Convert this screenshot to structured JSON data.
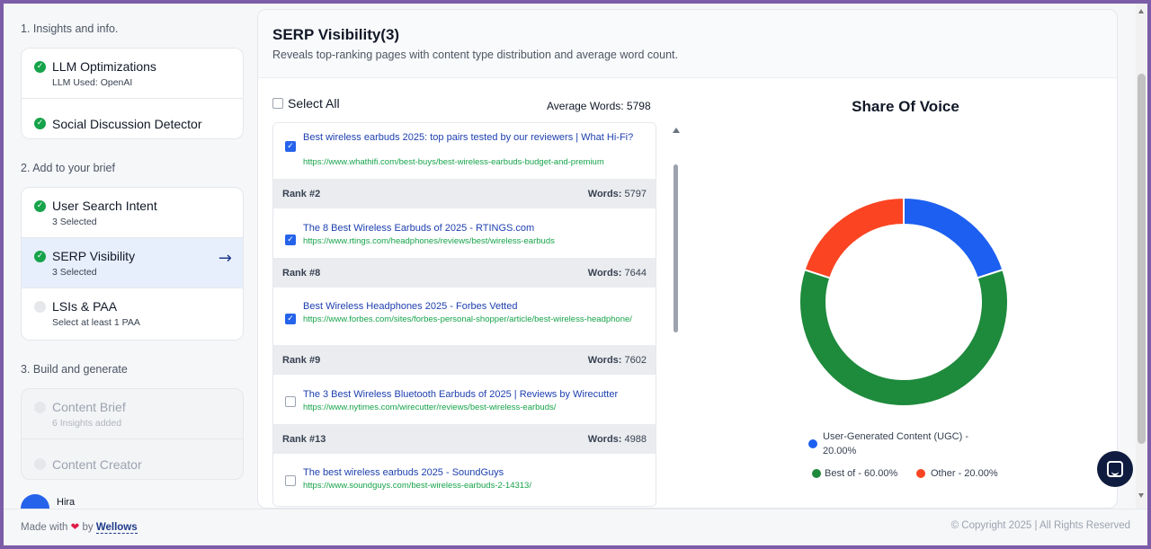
{
  "sidebar": {
    "section1_title": "1. Insights and info.",
    "section2_title": "2. Add to your brief",
    "section3_title": "3. Build and generate",
    "section1_items": [
      {
        "title": "LLM Optimizations",
        "sub": "LLM Used: OpenAI"
      },
      {
        "title": "Social Discussion Detector"
      }
    ],
    "section2_items": [
      {
        "title": "User Search Intent",
        "sub": "3 Selected"
      },
      {
        "title": "SERP Visibility",
        "sub": "3 Selected"
      },
      {
        "title": "LSIs & PAA",
        "sub": "Select at least 1 PAA"
      }
    ],
    "section3_items": [
      {
        "title": "Content Brief",
        "sub": "6 Insights added"
      },
      {
        "title": "Content Creator"
      }
    ],
    "user_name": "Hira"
  },
  "panel": {
    "title": "SERP Visibility(3)",
    "description": "Reveals top-ranking pages with content type distribution and average word count.",
    "select_all": "Select All",
    "average_words": "Average Words: 5798"
  },
  "results": [
    {
      "title": "Best wireless earbuds 2025: top pairs tested by our reviewers | What Hi-Fi?",
      "url": "https://www.whathifi.com/best-buys/best-wireless-earbuds-budget-and-premium",
      "checked": true
    },
    {
      "rank": "Rank #2",
      "words_label": "Words:",
      "words": "5797",
      "title": "The 8 Best Wireless Earbuds of 2025 - RTINGS.com",
      "url": "https://www.rtings.com/headphones/reviews/best/wireless-earbuds",
      "checked": true
    },
    {
      "rank": "Rank #8",
      "words_label": "Words:",
      "words": "7644",
      "title": "Best Wireless Headphones 2025 - Forbes Vetted",
      "url": "https://www.forbes.com/sites/forbes-personal-shopper/article/best-wireless-headphone/",
      "checked": true
    },
    {
      "rank": "Rank #9",
      "words_label": "Words:",
      "words": "7602",
      "title": "The 3 Best Wireless Bluetooth Earbuds of 2025 | Reviews by Wirecutter",
      "url": "https://www.nytimes.com/wirecutter/reviews/best-wireless-earbuds/",
      "checked": false
    },
    {
      "rank": "Rank #13",
      "words_label": "Words:",
      "words": "4988",
      "title": "The best wireless earbuds 2025 - SoundGuys",
      "url": "https://www.soundguys.com/best-wireless-earbuds-2-14313/",
      "checked": false
    }
  ],
  "chart_data": {
    "type": "pie",
    "title": "Share Of Voice",
    "categories": [
      "User-Generated Content (UGC)",
      "Best of",
      "Other"
    ],
    "values": [
      20.0,
      60.0,
      20.0
    ],
    "colors": [
      "#1d5ff0",
      "#1e8a3c",
      "#fb4422"
    ],
    "legend": [
      "User-Generated Content (UGC) - 20.00%",
      "Best of - 60.00%",
      "Other - 20.00%"
    ]
  },
  "footer": {
    "made_with": "Made with",
    "by": "by",
    "brand": "Wellows",
    "copyright": "© Copyright 2025 | All Rights Reserved"
  }
}
